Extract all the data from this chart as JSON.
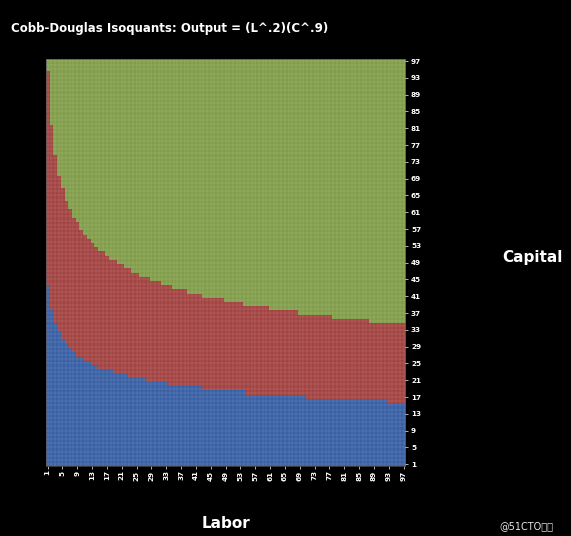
{
  "title": "Cobb-Douglas Isoquants: Output = (L^.2)(C^.9)",
  "xlabel": "Labor",
  "ylabel": "Capital",
  "alpha_L": 0.2,
  "alpha_C": 0.9,
  "L_range": [
    1,
    97
  ],
  "C_range": [
    1,
    97
  ],
  "isoquant_levels": [
    30,
    60
  ],
  "background_color": "#000000",
  "plot_bg_color": "#000000",
  "title_color": "#ffffff",
  "label_color": "#ffffff",
  "tick_color": "#ffffff",
  "tick_step": 4,
  "region_colors": [
    "#4472C4",
    "#C0504D",
    "#9BBB59"
  ],
  "watermark": "@51CTO博客",
  "watermark_color": "#ffffff"
}
